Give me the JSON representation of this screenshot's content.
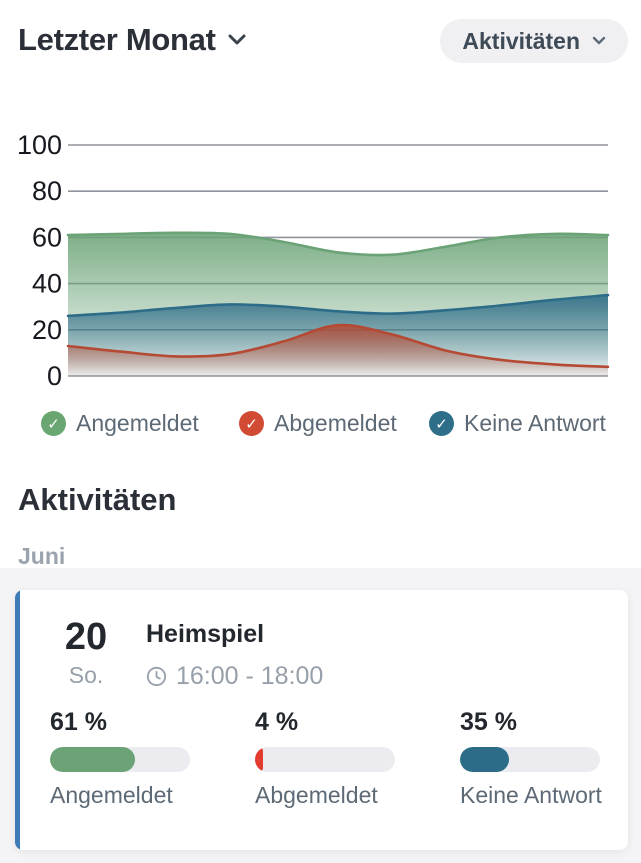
{
  "header": {
    "period_label": "Letzter Monat",
    "view_button_label": "Aktivitäten"
  },
  "chart_data": {
    "type": "area",
    "title": "",
    "xlabel": "",
    "ylabel": "",
    "ylim": [
      0,
      100
    ],
    "yticks": [
      0,
      20,
      40,
      60,
      80,
      100
    ],
    "grid": true,
    "legend_position": "bottom",
    "x": [
      0,
      0.1,
      0.2,
      0.3,
      0.4,
      0.5,
      0.6,
      0.7,
      0.8,
      0.9,
      1
    ],
    "series": [
      {
        "name": "Angemeldet",
        "color": "#6ba377",
        "values": [
          61,
          61.5,
          62,
          61.5,
          58,
          53.5,
          52.5,
          56,
          60,
          61.5,
          61
        ]
      },
      {
        "name": "Keine Antwort",
        "color": "#2d6c88",
        "values": [
          26,
          27.5,
          29.5,
          31,
          30,
          28,
          27,
          28.5,
          30.5,
          33,
          35
        ]
      },
      {
        "name": "Abgemeldet",
        "color": "#b54a34",
        "values": [
          13,
          10.5,
          8.5,
          9.5,
          15,
          22,
          18,
          11,
          7,
          5,
          4
        ]
      }
    ]
  },
  "legend": {
    "items": [
      {
        "label": "Angemeldet",
        "color": "#6aa672"
      },
      {
        "label": "Abgemeldet",
        "color": "#d14b34"
      },
      {
        "label": "Keine Antwort",
        "color": "#2e6e88"
      }
    ]
  },
  "activities": {
    "section_title": "Aktivitäten",
    "month_label": "Juni",
    "card": {
      "day": "20",
      "weekday": "So.",
      "title": "Heimspiel",
      "time": "16:00 - 18:00",
      "accent_color": "#3e7cb8",
      "stats": [
        {
          "display": "61 %",
          "value": 61,
          "label": "Angemeldet",
          "color": "#6ba377"
        },
        {
          "display": "4 %",
          "value": 4,
          "label": "Abgemeldet",
          "color": "#e23b30"
        },
        {
          "display": "35 %",
          "value": 35,
          "label": "Keine Antwort",
          "color": "#2d6c88"
        }
      ]
    }
  }
}
